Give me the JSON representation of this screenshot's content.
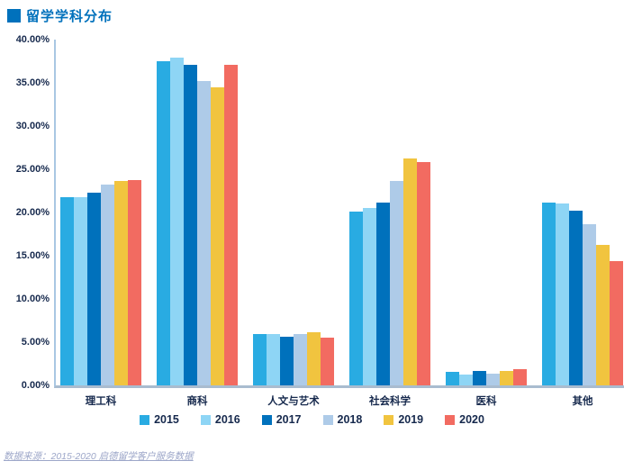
{
  "title": "留学学科分布",
  "source": "数据来源：2015-2020 启德留学客户服务数据",
  "colors": {
    "title": "#0071BC",
    "axis_text": "#16294D",
    "axis_line": "#A9C7E3",
    "baseline": "#A9BCCF",
    "source_text": "#9DA7C9"
  },
  "chart_data": {
    "type": "bar",
    "title": "留学学科分布",
    "categories": [
      "理工科",
      "商科",
      "人文与艺术",
      "社会科学",
      "医科",
      "其他"
    ],
    "series": [
      {
        "name": "2015",
        "color": "#29ABE2",
        "values": [
          21.8,
          37.5,
          5.9,
          20.1,
          1.6,
          21.2
        ]
      },
      {
        "name": "2016",
        "color": "#8ED5F5",
        "values": [
          21.8,
          37.9,
          5.9,
          20.5,
          1.3,
          21.0
        ]
      },
      {
        "name": "2017",
        "color": "#0071BC",
        "values": [
          22.3,
          37.1,
          5.6,
          21.2,
          1.7,
          20.2
        ]
      },
      {
        "name": "2018",
        "color": "#AECBE8",
        "values": [
          23.2,
          35.2,
          5.9,
          23.6,
          1.4,
          18.6
        ]
      },
      {
        "name": "2019",
        "color": "#F1C43F",
        "values": [
          23.7,
          34.5,
          6.1,
          26.3,
          1.7,
          16.3
        ]
      },
      {
        "name": "2020",
        "color": "#F26B61",
        "values": [
          23.8,
          37.1,
          5.5,
          25.8,
          1.9,
          14.4
        ]
      }
    ],
    "y_ticks": [
      "40.00%",
      "35.00%",
      "30.00%",
      "25.00%",
      "20.00%",
      "15.00%",
      "10.00%",
      "5.00%",
      "0.00%"
    ],
    "ylim": [
      0,
      40
    ],
    "grid": false,
    "legend_position": "bottom",
    "value_unit": "%"
  }
}
